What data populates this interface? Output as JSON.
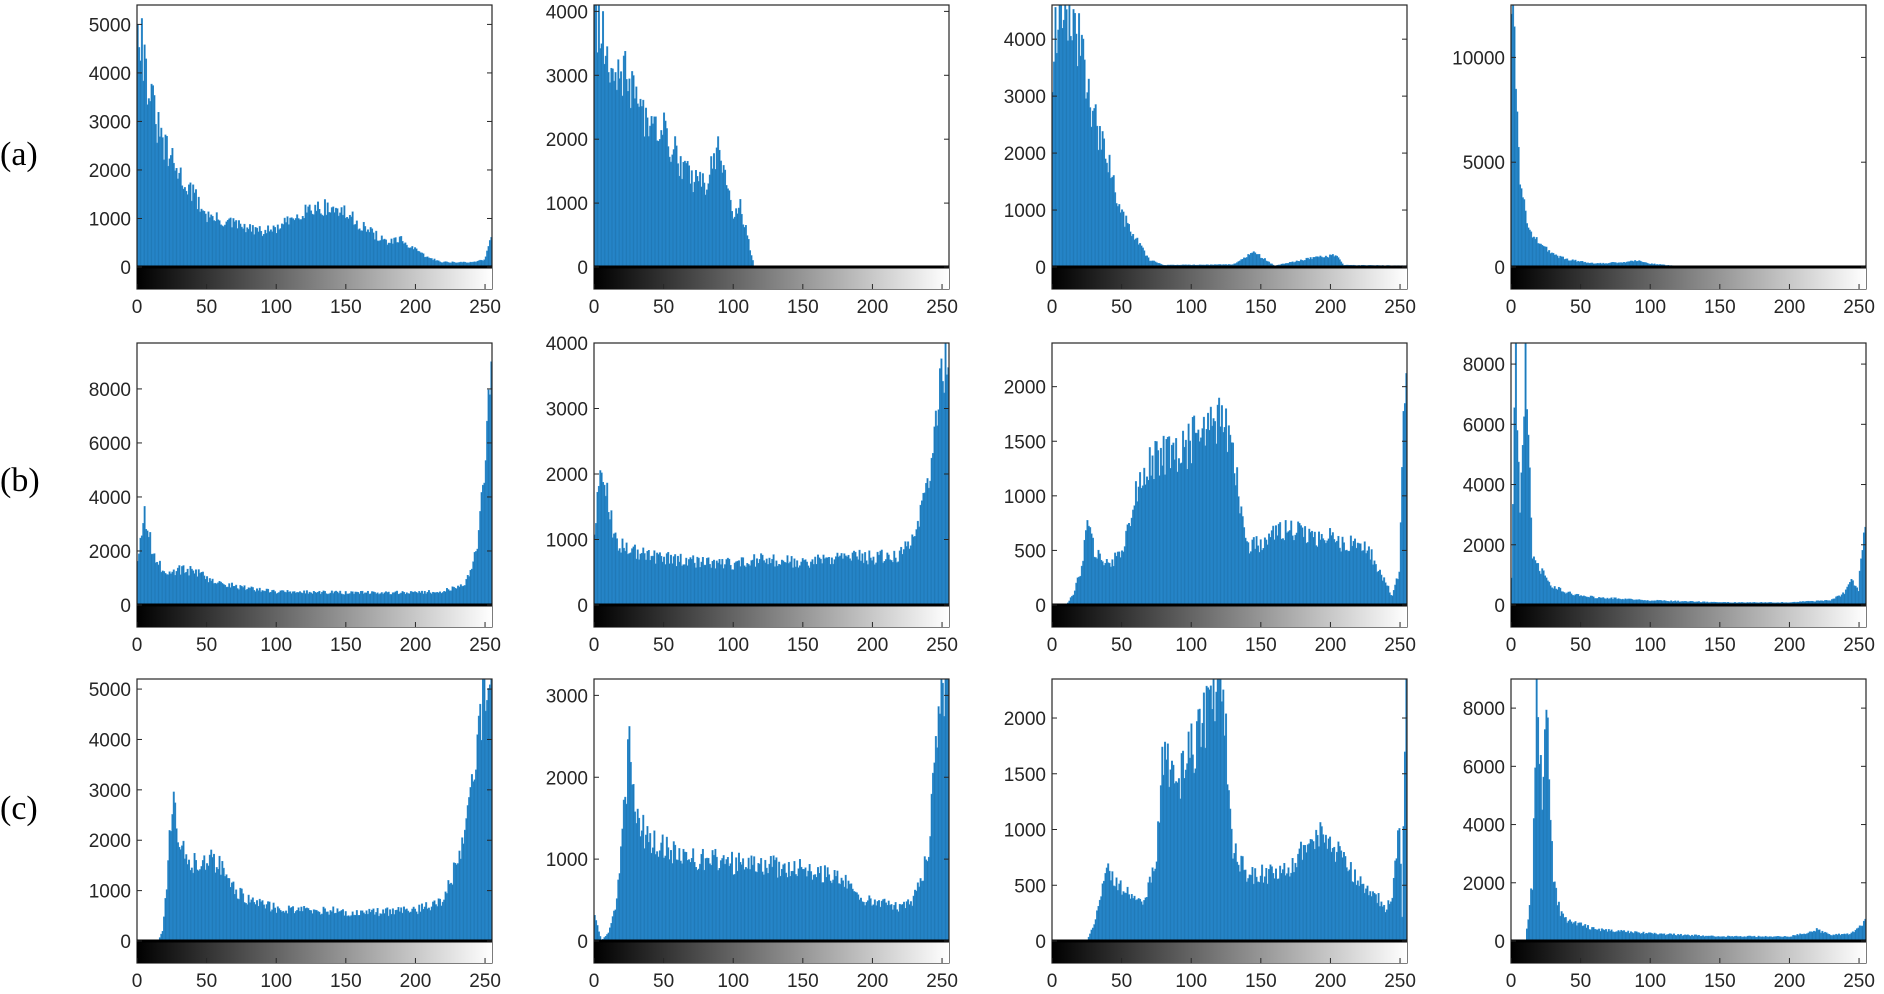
{
  "chart_data": {
    "type": "histogram-grid",
    "row_labels": [
      "(a)",
      "(b)",
      "(c)"
    ],
    "x_range": [
      0,
      255
    ],
    "x_ticks": [
      0,
      50,
      100,
      150,
      200,
      250
    ],
    "colorbar": "grayscale",
    "colors": {
      "bars": "#1f77b4",
      "axis": "#262626"
    },
    "panels": [
      {
        "row": 0,
        "col": 0,
        "ylim": [
          0,
          5400
        ],
        "y_ticks": [
          0,
          1000,
          2000,
          3000,
          4000,
          5000
        ],
        "profile": [
          [
            0,
            5400
          ],
          [
            5,
            4200
          ],
          [
            10,
            3400
          ],
          [
            15,
            2800
          ],
          [
            20,
            2400
          ],
          [
            30,
            1900
          ],
          [
            40,
            1500
          ],
          [
            50,
            1050
          ],
          [
            60,
            950
          ],
          [
            70,
            880
          ],
          [
            80,
            780
          ],
          [
            90,
            720
          ],
          [
            100,
            780
          ],
          [
            110,
            950
          ],
          [
            120,
            1180
          ],
          [
            130,
            1230
          ],
          [
            140,
            1200
          ],
          [
            150,
            1100
          ],
          [
            160,
            880
          ],
          [
            170,
            680
          ],
          [
            180,
            500
          ],
          [
            190,
            550
          ],
          [
            200,
            350
          ],
          [
            210,
            180
          ],
          [
            220,
            100
          ],
          [
            240,
            90
          ],
          [
            250,
            150
          ],
          [
            255,
            600
          ]
        ]
      },
      {
        "row": 0,
        "col": 1,
        "ylim": [
          0,
          4100
        ],
        "y_ticks": [
          0,
          1000,
          2000,
          3000,
          4000
        ],
        "profile": [
          [
            0,
            4100
          ],
          [
            5,
            3700
          ],
          [
            10,
            3400
          ],
          [
            20,
            3000
          ],
          [
            30,
            2700
          ],
          [
            40,
            2150
          ],
          [
            50,
            2100
          ],
          [
            60,
            1700
          ],
          [
            70,
            1350
          ],
          [
            80,
            1300
          ],
          [
            85,
            1600
          ],
          [
            90,
            1850
          ],
          [
            95,
            1450
          ],
          [
            100,
            850
          ],
          [
            105,
            950
          ],
          [
            110,
            500
          ],
          [
            115,
            0
          ],
          [
            255,
            0
          ]
        ]
      },
      {
        "row": 0,
        "col": 2,
        "ylim": [
          0,
          4600
        ],
        "y_ticks": [
          0,
          1000,
          2000,
          3000,
          4000
        ],
        "profile": [
          [
            0,
            3600
          ],
          [
            5,
            4600
          ],
          [
            10,
            4600
          ],
          [
            20,
            3900
          ],
          [
            25,
            3300
          ],
          [
            30,
            2600
          ],
          [
            40,
            1800
          ],
          [
            50,
            900
          ],
          [
            60,
            500
          ],
          [
            65,
            300
          ],
          [
            70,
            120
          ],
          [
            80,
            30
          ],
          [
            130,
            40
          ],
          [
            145,
            250
          ],
          [
            150,
            180
          ],
          [
            160,
            20
          ],
          [
            190,
            170
          ],
          [
            205,
            200
          ],
          [
            210,
            30
          ],
          [
            255,
            20
          ]
        ]
      },
      {
        "row": 0,
        "col": 3,
        "ylim": [
          0,
          12500
        ],
        "y_ticks": [
          0,
          5000,
          10000
        ],
        "profile": [
          [
            0,
            12500
          ],
          [
            3,
            9000
          ],
          [
            6,
            4500
          ],
          [
            10,
            2500
          ],
          [
            15,
            1600
          ],
          [
            20,
            1100
          ],
          [
            30,
            600
          ],
          [
            40,
            350
          ],
          [
            60,
            150
          ],
          [
            80,
            220
          ],
          [
            90,
            300
          ],
          [
            100,
            150
          ],
          [
            120,
            30
          ],
          [
            255,
            0
          ]
        ]
      },
      {
        "row": 1,
        "col": 0,
        "ylim": [
          0,
          9700
        ],
        "y_ticks": [
          0,
          2000,
          4000,
          6000,
          8000
        ],
        "profile": [
          [
            0,
            1500
          ],
          [
            5,
            3300
          ],
          [
            10,
            2200
          ],
          [
            15,
            1500
          ],
          [
            20,
            1100
          ],
          [
            30,
            1300
          ],
          [
            40,
            1250
          ],
          [
            50,
            1000
          ],
          [
            60,
            800
          ],
          [
            80,
            600
          ],
          [
            100,
            480
          ],
          [
            150,
            450
          ],
          [
            200,
            450
          ],
          [
            220,
            500
          ],
          [
            235,
            700
          ],
          [
            245,
            2000
          ],
          [
            250,
            5000
          ],
          [
            253,
            8000
          ],
          [
            255,
            9700
          ]
        ]
      },
      {
        "row": 1,
        "col": 1,
        "ylim": [
          0,
          4000
        ],
        "y_ticks": [
          0,
          1000,
          2000,
          3000,
          4000
        ],
        "profile": [
          [
            0,
            1200
          ],
          [
            5,
            2100
          ],
          [
            10,
            1500
          ],
          [
            15,
            1000
          ],
          [
            20,
            900
          ],
          [
            40,
            750
          ],
          [
            60,
            680
          ],
          [
            80,
            650
          ],
          [
            100,
            620
          ],
          [
            120,
            700
          ],
          [
            150,
            650
          ],
          [
            180,
            740
          ],
          [
            200,
            720
          ],
          [
            220,
            760
          ],
          [
            230,
            1000
          ],
          [
            240,
            1700
          ],
          [
            245,
            2600
          ],
          [
            250,
            3400
          ],
          [
            255,
            4000
          ]
        ]
      },
      {
        "row": 1,
        "col": 2,
        "ylim": [
          0,
          2400
        ],
        "y_ticks": [
          0,
          500,
          1000,
          1500,
          2000
        ],
        "profile": [
          [
            0,
            0
          ],
          [
            10,
            0
          ],
          [
            15,
            100
          ],
          [
            20,
            300
          ],
          [
            25,
            700
          ],
          [
            30,
            500
          ],
          [
            40,
            350
          ],
          [
            50,
            500
          ],
          [
            60,
            1000
          ],
          [
            70,
            1300
          ],
          [
            80,
            1400
          ],
          [
            90,
            1350
          ],
          [
            100,
            1500
          ],
          [
            110,
            1650
          ],
          [
            120,
            1700
          ],
          [
            130,
            1500
          ],
          [
            135,
            900
          ],
          [
            140,
            550
          ],
          [
            150,
            560
          ],
          [
            160,
            650
          ],
          [
            170,
            700
          ],
          [
            180,
            650
          ],
          [
            190,
            600
          ],
          [
            200,
            650
          ],
          [
            210,
            550
          ],
          [
            220,
            600
          ],
          [
            230,
            450
          ],
          [
            240,
            200
          ],
          [
            245,
            80
          ],
          [
            250,
            300
          ],
          [
            255,
            2400
          ]
        ]
      },
      {
        "row": 1,
        "col": 3,
        "ylim": [
          0,
          8700
        ],
        "y_ticks": [
          0,
          2000,
          4000,
          6000,
          8000
        ],
        "profile": [
          [
            0,
            800
          ],
          [
            3,
            8700
          ],
          [
            6,
            3000
          ],
          [
            10,
            8000
          ],
          [
            15,
            1500
          ],
          [
            20,
            1200
          ],
          [
            30,
            600
          ],
          [
            40,
            400
          ],
          [
            60,
            250
          ],
          [
            100,
            150
          ],
          [
            150,
            80
          ],
          [
            200,
            80
          ],
          [
            230,
            150
          ],
          [
            240,
            400
          ],
          [
            245,
            800
          ],
          [
            250,
            500
          ],
          [
            255,
            3000
          ]
        ]
      },
      {
        "row": 2,
        "col": 0,
        "ylim": [
          0,
          5200
        ],
        "y_ticks": [
          0,
          1000,
          2000,
          3000,
          4000,
          5000
        ],
        "profile": [
          [
            0,
            0
          ],
          [
            15,
            0
          ],
          [
            18,
            200
          ],
          [
            22,
            1500
          ],
          [
            25,
            2800
          ],
          [
            30,
            2000
          ],
          [
            40,
            1500
          ],
          [
            50,
            1650
          ],
          [
            60,
            1450
          ],
          [
            70,
            1000
          ],
          [
            80,
            800
          ],
          [
            100,
            650
          ],
          [
            140,
            600
          ],
          [
            160,
            550
          ],
          [
            200,
            600
          ],
          [
            220,
            800
          ],
          [
            230,
            1500
          ],
          [
            240,
            2800
          ],
          [
            245,
            3800
          ],
          [
            250,
            5000
          ],
          [
            255,
            5200
          ]
        ]
      },
      {
        "row": 2,
        "col": 1,
        "ylim": [
          0,
          3200
        ],
        "y_ticks": [
          0,
          1000,
          2000,
          3000
        ],
        "profile": [
          [
            0,
            300
          ],
          [
            5,
            0
          ],
          [
            10,
            100
          ],
          [
            15,
            400
          ],
          [
            20,
            1300
          ],
          [
            25,
            2400
          ],
          [
            30,
            1500
          ],
          [
            40,
            1200
          ],
          [
            60,
            1050
          ],
          [
            80,
            1000
          ],
          [
            100,
            950
          ],
          [
            120,
            920
          ],
          [
            150,
            880
          ],
          [
            180,
            750
          ],
          [
            190,
            520
          ],
          [
            200,
            480
          ],
          [
            210,
            450
          ],
          [
            220,
            400
          ],
          [
            230,
            500
          ],
          [
            240,
            1000
          ],
          [
            245,
            2000
          ],
          [
            250,
            3200
          ],
          [
            255,
            3200
          ]
        ]
      },
      {
        "row": 2,
        "col": 2,
        "ylim": [
          0,
          2350
        ],
        "y_ticks": [
          0,
          500,
          1000,
          1500,
          2000
        ],
        "profile": [
          [
            0,
            0
          ],
          [
            25,
            0
          ],
          [
            30,
            150
          ],
          [
            35,
            400
          ],
          [
            40,
            700
          ],
          [
            45,
            500
          ],
          [
            55,
            450
          ],
          [
            65,
            300
          ],
          [
            75,
            800
          ],
          [
            80,
            1700
          ],
          [
            90,
            1400
          ],
          [
            100,
            1700
          ],
          [
            110,
            2000
          ],
          [
            120,
            2350
          ],
          [
            125,
            1800
          ],
          [
            130,
            800
          ],
          [
            140,
            600
          ],
          [
            160,
            600
          ],
          [
            170,
            650
          ],
          [
            180,
            800
          ],
          [
            190,
            950
          ],
          [
            200,
            900
          ],
          [
            210,
            700
          ],
          [
            220,
            550
          ],
          [
            230,
            450
          ],
          [
            240,
            300
          ],
          [
            245,
            350
          ],
          [
            250,
            1100
          ],
          [
            252,
            200
          ],
          [
            255,
            2350
          ]
        ]
      },
      {
        "row": 2,
        "col": 3,
        "ylim": [
          0,
          9000
        ],
        "y_ticks": [
          0,
          2000,
          4000,
          6000,
          8000
        ],
        "profile": [
          [
            0,
            0
          ],
          [
            10,
            0
          ],
          [
            15,
            2000
          ],
          [
            18,
            9000
          ],
          [
            22,
            5000
          ],
          [
            25,
            9000
          ],
          [
            30,
            2000
          ],
          [
            35,
            1000
          ],
          [
            40,
            700
          ],
          [
            60,
            400
          ],
          [
            100,
            250
          ],
          [
            150,
            150
          ],
          [
            200,
            150
          ],
          [
            215,
            300
          ],
          [
            220,
            380
          ],
          [
            230,
            200
          ],
          [
            245,
            250
          ],
          [
            250,
            400
          ],
          [
            255,
            700
          ]
        ]
      }
    ]
  }
}
